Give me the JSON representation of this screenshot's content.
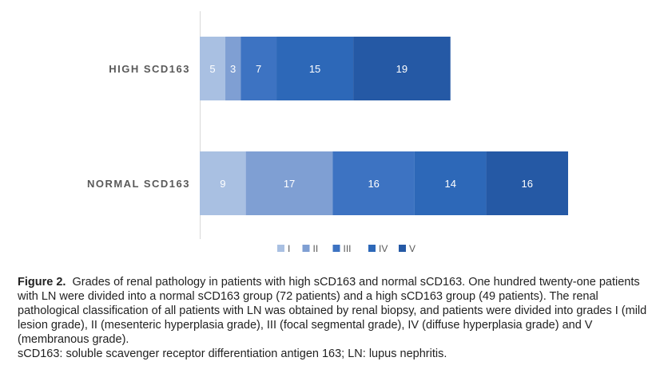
{
  "chart_data": {
    "type": "bar",
    "orientation": "horizontal",
    "stacked": true,
    "categories": [
      "HIGH SCD163",
      "NORMAL SCD163"
    ],
    "series": [
      {
        "name": "I",
        "values": [
          5,
          9
        ],
        "color": "#a9c0e2"
      },
      {
        "name": "II",
        "values": [
          3,
          17
        ],
        "color": "#7f9fd3"
      },
      {
        "name": "III",
        "values": [
          7,
          16
        ],
        "color": "#3d73c2"
      },
      {
        "name": "IV",
        "values": [
          15,
          14
        ],
        "color": "#2d68b8"
      },
      {
        "name": "V",
        "values": [
          19,
          16
        ],
        "color": "#2559a5"
      }
    ],
    "xlim": [
      0,
      72
    ],
    "legend_position": "bottom",
    "grid": false
  },
  "caption": {
    "figure_label": "Figure 2.",
    "text": "Grades of renal pathology in patients with high sCD163 and normal sCD163. One hundred twenty-one patients with LN were divided into a normal sCD163 group (72 patients) and a high sCD163 group (49 patients). The renal pathological classification of all patients with LN was obtained by renal biopsy, and patients were divided into grades I (mild lesion grade), II (mesenteric hyperplasia grade), III (focal segmental grade), IV (diffuse hyperplasia grade) and V (membranous grade).",
    "abbreviations": "sCD163: soluble scavenger receptor differentiation antigen 163; LN: lupus nephritis."
  }
}
